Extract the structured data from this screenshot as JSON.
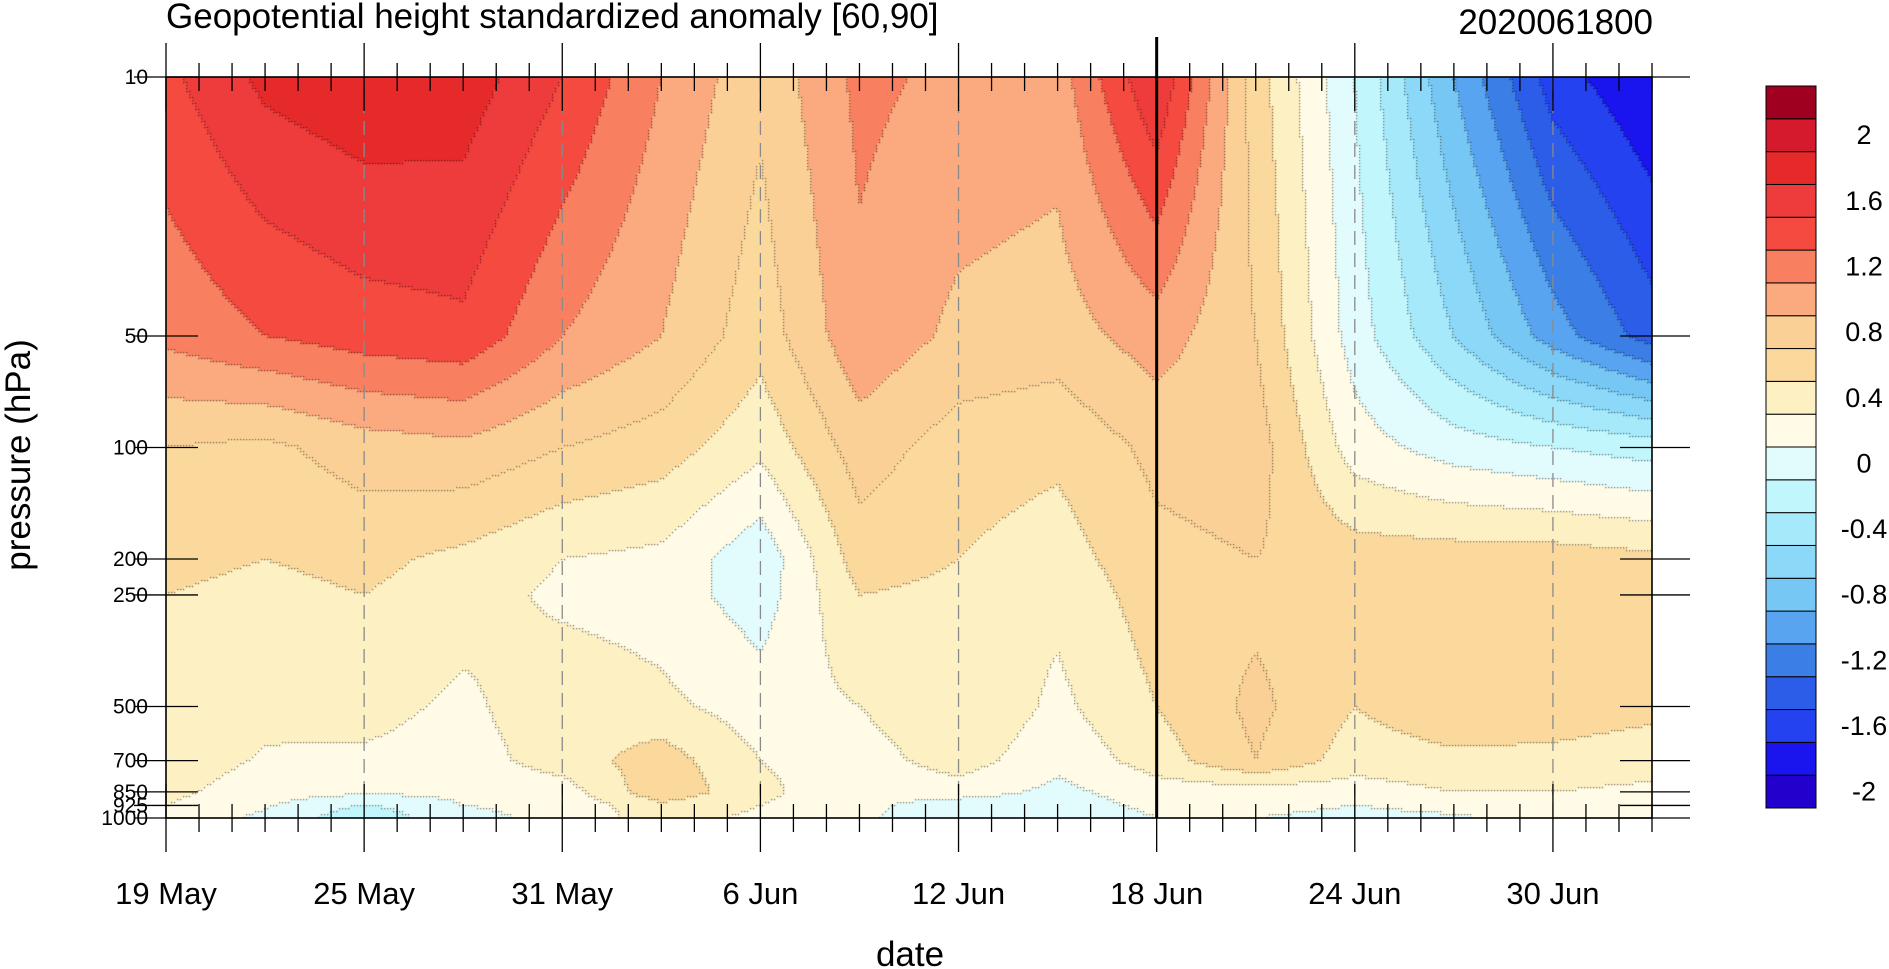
{
  "chart_data": {
    "type": "heatmap",
    "title": "Geopotential height standardized anomaly [60,90]",
    "subtitle": "2020061800",
    "xlabel": "date",
    "ylabel": "pressure (hPa)",
    "x_ticks": [
      "19 May",
      "25 May",
      "31 May",
      "6 Jun",
      "12 Jun",
      "18 Jun",
      "24 Jun",
      "30 Jun"
    ],
    "x_tick_days": [
      0,
      6,
      12,
      18,
      24,
      30,
      36,
      42
    ],
    "x_range_days": [
      0,
      45
    ],
    "y_ticks": [
      "10",
      "50",
      "100",
      "200",
      "250",
      "500",
      "700",
      "850",
      "925",
      "1000"
    ],
    "y_tick_values": [
      10,
      50,
      100,
      200,
      250,
      500,
      700,
      850,
      925,
      1000
    ],
    "ylim": [
      1000,
      10
    ],
    "y_scale": "log",
    "y_reversed": true,
    "reference_line_day": 30,
    "grid": "dashed vertical at x ticks",
    "colorbar": {
      "labels": [
        "2",
        "1.6",
        "1.2",
        "0.8",
        "0.4",
        "0",
        "-0.4",
        "-0.8",
        "-1.2",
        "-1.6",
        "-2"
      ],
      "levels": [
        -2.2,
        -2.0,
        -1.8,
        -1.6,
        -1.4,
        -1.2,
        -1.0,
        -0.8,
        -0.6,
        -0.4,
        -0.2,
        0,
        0.2,
        0.4,
        0.6,
        0.8,
        1.0,
        1.2,
        1.4,
        1.6,
        1.8,
        2.0,
        2.2
      ],
      "colors": [
        "#2300cc",
        "#1a14ee",
        "#2442ef",
        "#2b5de9",
        "#3a7ee6",
        "#58a4f0",
        "#76c7f4",
        "#8cd8f8",
        "#a5e9fb",
        "#c0f6fc",
        "#e2fbfc",
        "#fffbe6",
        "#fdf0c2",
        "#fbd89c",
        "#fbd097",
        "#fba97e",
        "#f88060",
        "#f44a40",
        "#ee3b3b",
        "#e62a2a",
        "#d51a2e",
        "#a0001f"
      ]
    },
    "keyframes": [
      {
        "x": 0,
        "v": [
          1.35,
          1.05,
          0.6,
          0.45,
          0.4,
          0.35,
          0.3,
          0.25,
          0.2,
          0.15
        ]
      },
      {
        "x": 3,
        "v": [
          1.65,
          1.2,
          0.55,
          0.4,
          0.35,
          0.25,
          0.18,
          0.1,
          0.02,
          -0.05
        ]
      },
      {
        "x": 6,
        "v": [
          1.75,
          1.3,
          0.7,
          0.45,
          0.4,
          0.28,
          0.16,
          0.05,
          -0.22,
          -0.35
        ]
      },
      {
        "x": 9,
        "v": [
          1.72,
          1.35,
          0.75,
          0.35,
          0.3,
          0.15,
          0.1,
          0.05,
          0.0,
          -0.05
        ]
      },
      {
        "x": 12,
        "v": [
          1.4,
          1.0,
          0.6,
          0.2,
          0.15,
          0.35,
          0.3,
          0.1,
          0.05,
          0.05
        ]
      },
      {
        "x": 15,
        "v": [
          1.0,
          0.8,
          0.5,
          0.15,
          0.1,
          0.25,
          0.5,
          0.55,
          0.35,
          0.3
        ]
      },
      {
        "x": 18,
        "v": [
          0.65,
          0.48,
          0.25,
          -0.15,
          -0.1,
          0.1,
          0.2,
          0.25,
          0.2,
          0.15
        ]
      },
      {
        "x": 21,
        "v": [
          1.05,
          0.95,
          0.7,
          0.5,
          0.4,
          0.2,
          0.1,
          0.05,
          0.05,
          0.05
        ]
      },
      {
        "x": 24,
        "v": [
          0.95,
          0.75,
          0.5,
          0.4,
          0.35,
          0.4,
          0.3,
          0.1,
          -0.1,
          -0.2
        ]
      },
      {
        "x": 27,
        "v": [
          0.9,
          0.7,
          0.45,
          0.3,
          0.25,
          0.15,
          0.05,
          -0.05,
          -0.1,
          -0.15
        ]
      },
      {
        "x": 30,
        "v": [
          1.6,
          0.9,
          0.65,
          0.55,
          0.5,
          0.4,
          0.3,
          0.1,
          0.05,
          0.0
        ]
      },
      {
        "x": 33,
        "v": [
          0.5,
          0.6,
          0.7,
          0.6,
          0.55,
          0.65,
          0.6,
          0.1,
          0.05,
          0.0
        ]
      },
      {
        "x": 36,
        "v": [
          -0.2,
          -0.1,
          0.1,
          0.5,
          0.5,
          0.4,
          0.3,
          0.1,
          0.0,
          -0.05
        ]
      },
      {
        "x": 39,
        "v": [
          -1.0,
          -0.6,
          -0.1,
          0.5,
          0.55,
          0.55,
          0.35,
          0.2,
          0.05,
          -0.02
        ]
      },
      {
        "x": 42,
        "v": [
          -1.7,
          -1.1,
          -0.2,
          0.5,
          0.55,
          0.5,
          0.35,
          0.2,
          0.1,
          0.05
        ]
      },
      {
        "x": 45,
        "v": [
          -2.0,
          -1.5,
          -0.3,
          0.45,
          0.5,
          0.45,
          0.3,
          0.15,
          0.1,
          0.05
        ]
      }
    ]
  }
}
